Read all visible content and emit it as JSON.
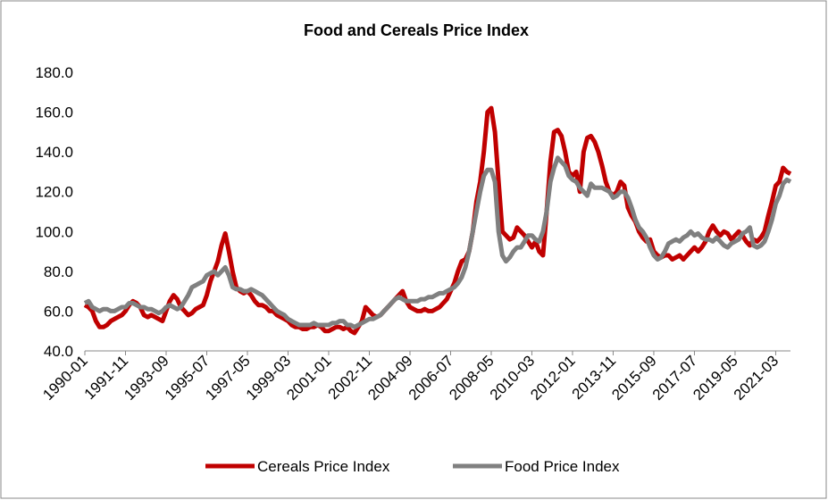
{
  "chart_data": {
    "type": "line",
    "title": "Food and Cereals Price Index",
    "categories": [
      "1990-01",
      null,
      null,
      null,
      null,
      null,
      null,
      null,
      null,
      null,
      null,
      "1991-11",
      null,
      null,
      null,
      null,
      null,
      null,
      null,
      null,
      null,
      null,
      "1993-09",
      null,
      null,
      null,
      null,
      null,
      null,
      null,
      null,
      null,
      null,
      "1995-07",
      null,
      null,
      null,
      null,
      null,
      null,
      null,
      null,
      null,
      null,
      "1997-05",
      null,
      null,
      null,
      null,
      null,
      null,
      null,
      null,
      null,
      null,
      "1999-03",
      null,
      null,
      null,
      null,
      null,
      null,
      null,
      null,
      null,
      null,
      "2001-01",
      null,
      null,
      null,
      null,
      null,
      null,
      null,
      null,
      null,
      null,
      "2002-11",
      null,
      null,
      null,
      null,
      null,
      null,
      null,
      null,
      null,
      null,
      "2004-09",
      null,
      null,
      null,
      null,
      null,
      null,
      null,
      null,
      null,
      null,
      "2006-07",
      null,
      null,
      null,
      null,
      null,
      null,
      null,
      null,
      null,
      null,
      "2008-05",
      null,
      null,
      null,
      null,
      null,
      null,
      null,
      null,
      null,
      null,
      "2010-03",
      null,
      null,
      null,
      null,
      null,
      null,
      null,
      null,
      null,
      null,
      "2012-01",
      null,
      null,
      null,
      null,
      null,
      null,
      null,
      null,
      null,
      null,
      "2013-11",
      null,
      null,
      null,
      null,
      null,
      null,
      null,
      null,
      null,
      null,
      "2015-09",
      null,
      null,
      null,
      null,
      null,
      null,
      null,
      null,
      null,
      null,
      "2017-07",
      null,
      null,
      null,
      null,
      null,
      null,
      null,
      null,
      null,
      null,
      "2019-05",
      null,
      null,
      null,
      null,
      null,
      null,
      null,
      null,
      null,
      null,
      "2021-03",
      null,
      null,
      null,
      null
    ],
    "series": [
      {
        "name": "Cereals Price Index",
        "color": "#c00000",
        "values": [
          63,
          62,
          60,
          55,
          52,
          52,
          53,
          55,
          56,
          57,
          58,
          60,
          63,
          65,
          64,
          62,
          58,
          57,
          58,
          57,
          56,
          55,
          60,
          65,
          68,
          66,
          62,
          60,
          58,
          59,
          61,
          62,
          63,
          68,
          75,
          80,
          85,
          93,
          99,
          90,
          80,
          72,
          70,
          69,
          70,
          68,
          65,
          63,
          63,
          62,
          60,
          60,
          58,
          57,
          56,
          55,
          53,
          52,
          52,
          51,
          51,
          52,
          52,
          53,
          52,
          50,
          50,
          51,
          52,
          52,
          51,
          52,
          50,
          49,
          52,
          55,
          62,
          60,
          58,
          57,
          58,
          60,
          62,
          64,
          66,
          68,
          70,
          65,
          62,
          61,
          60,
          60,
          61,
          60,
          60,
          61,
          62,
          64,
          66,
          70,
          74,
          80,
          85,
          86,
          90,
          100,
          115,
          125,
          140,
          160,
          162,
          150,
          125,
          100,
          98,
          96,
          97,
          102,
          100,
          98,
          95,
          92,
          95,
          90,
          88,
          110,
          135,
          150,
          151,
          148,
          140,
          130,
          128,
          130,
          120,
          140,
          147,
          148,
          145,
          140,
          133,
          125,
          120,
          118,
          120,
          125,
          123,
          112,
          108,
          105,
          100,
          97,
          95,
          96,
          90,
          88,
          87,
          88,
          88,
          86,
          87,
          88,
          86,
          88,
          90,
          92,
          90,
          92,
          95,
          100,
          103,
          100,
          98,
          100,
          99,
          96,
          98,
          100,
          98,
          95,
          93,
          96,
          95,
          97,
          100,
          108,
          115,
          123,
          125,
          132,
          130,
          129
        ]
      },
      {
        "name": "Food Price Index",
        "color": "#808080",
        "values": [
          64,
          65,
          62,
          61,
          60,
          61,
          61,
          60,
          60,
          61,
          62,
          62,
          64,
          64,
          63,
          62,
          62,
          61,
          61,
          60,
          59,
          60,
          62,
          63,
          62,
          61,
          62,
          65,
          68,
          72,
          73,
          74,
          75,
          78,
          79,
          80,
          78,
          80,
          82,
          78,
          72,
          71,
          71,
          70,
          70,
          71,
          70,
          69,
          68,
          66,
          64,
          62,
          60,
          59,
          58,
          56,
          55,
          54,
          53,
          53,
          53,
          53,
          54,
          53,
          53,
          53,
          53,
          54,
          54,
          55,
          55,
          53,
          53,
          52,
          53,
          54,
          55,
          56,
          56,
          57,
          58,
          60,
          62,
          64,
          66,
          67,
          66,
          65,
          65,
          65,
          65,
          66,
          66,
          67,
          67,
          68,
          69,
          69,
          70,
          71,
          72,
          74,
          77,
          82,
          90,
          100,
          110,
          120,
          128,
          131,
          131,
          125,
          100,
          88,
          85,
          87,
          90,
          92,
          92,
          95,
          98,
          98,
          96,
          95,
          100,
          110,
          125,
          132,
          137,
          135,
          133,
          128,
          126,
          125,
          122,
          120,
          118,
          124,
          122,
          122,
          122,
          121,
          120,
          117,
          118,
          120,
          120,
          117,
          112,
          106,
          102,
          100,
          97,
          92,
          88,
          86,
          87,
          90,
          94,
          95,
          96,
          95,
          97,
          98,
          100,
          98,
          99,
          97,
          96,
          96,
          95,
          97,
          95,
          93,
          92,
          94,
          95,
          96,
          99,
          100,
          102,
          93,
          92,
          93,
          95,
          100,
          106,
          114,
          118,
          124,
          126,
          125
        ]
      }
    ],
    "ylim": [
      40,
      180
    ],
    "yticks": [
      {
        "value": 40,
        "label": "40.0"
      },
      {
        "value": 60,
        "label": "60.0"
      },
      {
        "value": 80,
        "label": "80.0"
      },
      {
        "value": 100,
        "label": "100.0"
      },
      {
        "value": 120,
        "label": "120.0"
      },
      {
        "value": 140,
        "label": "140.0"
      },
      {
        "value": 160,
        "label": "160.0"
      },
      {
        "value": 180,
        "label": "180.0"
      }
    ],
    "legend": "bottom"
  }
}
